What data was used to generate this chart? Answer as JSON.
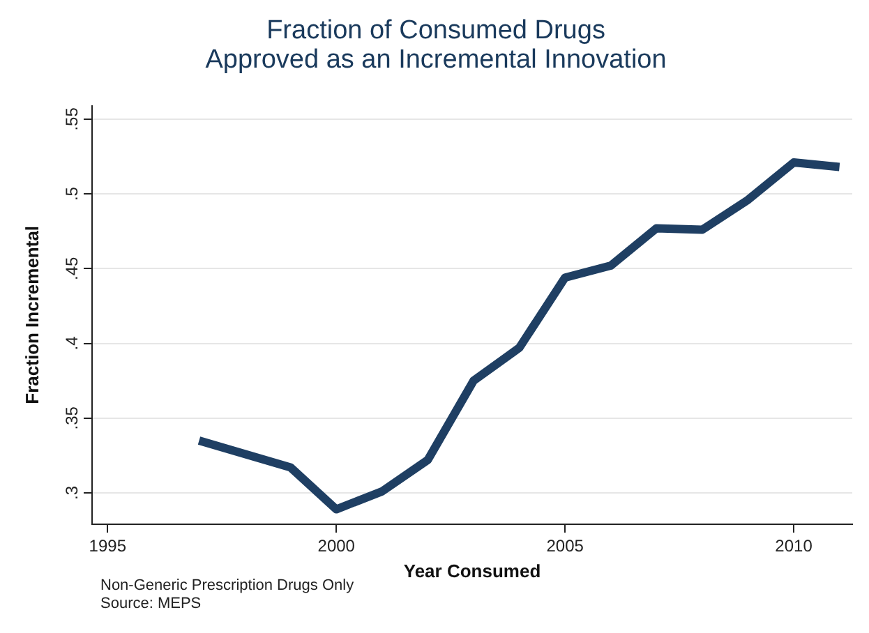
{
  "chart_data": {
    "type": "line",
    "title": "Fraction of Consumed Drugs\nApproved as an Incremental Innovation",
    "xlabel": "Year Consumed",
    "ylabel": "Fraction Incremental",
    "x": [
      1997,
      1998,
      1999,
      2000,
      2001,
      2002,
      2003,
      2004,
      2005,
      2006,
      2007,
      2008,
      2009,
      2010,
      2011
    ],
    "series": [
      {
        "color": "#1f3f63",
        "values": [
          0.335,
          0.326,
          0.317,
          0.289,
          0.301,
          0.322,
          0.375,
          0.397,
          0.444,
          0.452,
          0.477,
          0.476,
          0.496,
          0.521,
          0.518
        ]
      }
    ],
    "xlim": [
      1994.66,
      2011.28
    ],
    "ylim": [
      0.279,
      0.559
    ],
    "xticks": [
      1995,
      2000,
      2005,
      2010
    ],
    "yticks": [
      {
        "value": 0.3,
        "label": ".3"
      },
      {
        "value": 0.35,
        "label": ".35"
      },
      {
        "value": 0.4,
        "label": ".4"
      },
      {
        "value": 0.45,
        "label": ".45"
      },
      {
        "value": 0.5,
        "label": ".5"
      },
      {
        "value": 0.55,
        "label": ".55"
      }
    ],
    "grid": "y",
    "legend": false,
    "marker": "none",
    "line_style": "solid",
    "annotations": [
      "Non-Generic Prescription Drugs Only",
      "Source: MEPS"
    ]
  }
}
